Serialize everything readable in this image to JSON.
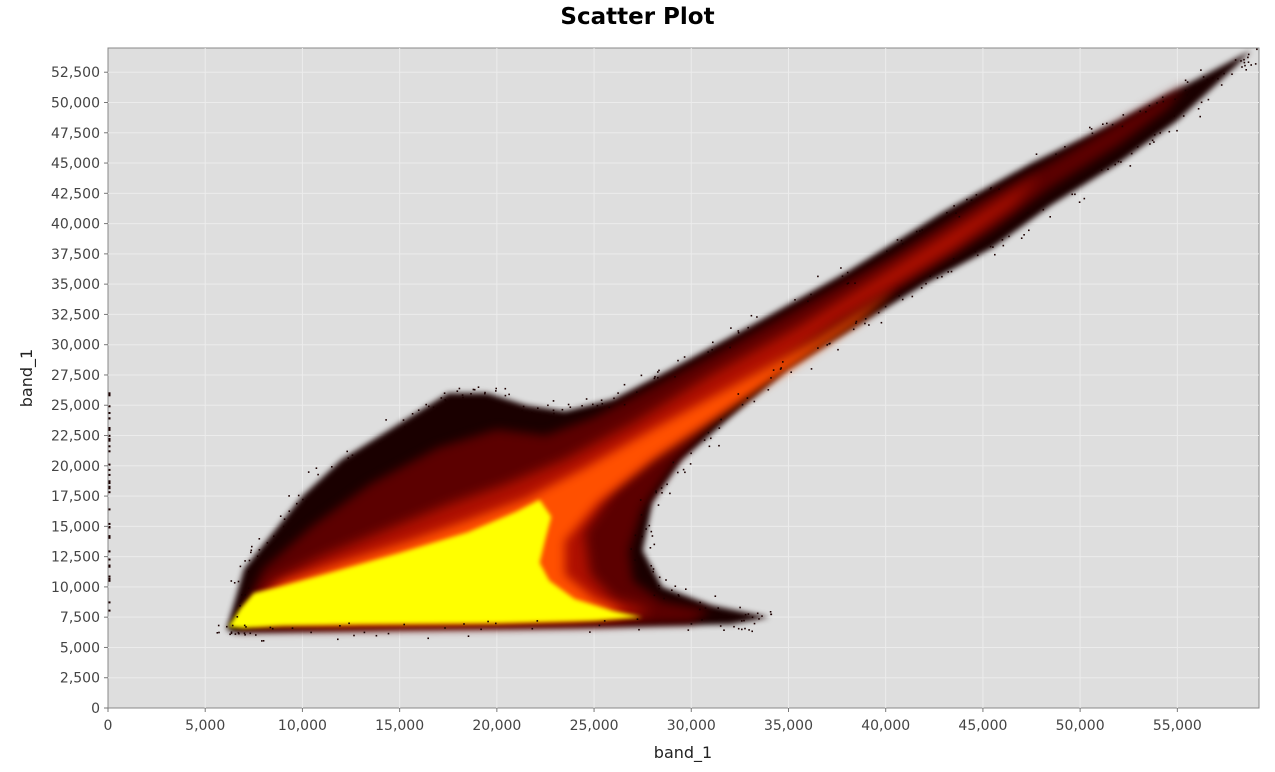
{
  "chart_data": {
    "type": "heatmap",
    "subtype": "density-scatter",
    "title": "Scatter Plot",
    "xlabel": "band_1",
    "ylabel": "band_1",
    "xlim": [
      0,
      59200
    ],
    "ylim": [
      0,
      54500
    ],
    "x_ticks": [
      0,
      5000,
      10000,
      15000,
      20000,
      25000,
      30000,
      35000,
      40000,
      45000,
      50000,
      55000
    ],
    "x_tick_labels": [
      "0",
      "5,000",
      "10,000",
      "15,000",
      "20,000",
      "25,000",
      "30,000",
      "35,000",
      "40,000",
      "45,000",
      "50,000",
      "55,000"
    ],
    "y_ticks": [
      0,
      2500,
      5000,
      7500,
      10000,
      12500,
      15000,
      17500,
      20000,
      22500,
      25000,
      27500,
      30000,
      32500,
      35000,
      37500,
      40000,
      42500,
      45000,
      47500,
      50000,
      52500
    ],
    "y_tick_labels": [
      "0",
      "2,500",
      "5,000",
      "7,500",
      "10,000",
      "12,500",
      "15,000",
      "17,500",
      "20,000",
      "22,500",
      "25,000",
      "27,500",
      "30,000",
      "32,500",
      "35,000",
      "37,500",
      "40,000",
      "42,500",
      "45,000",
      "47,500",
      "50,000",
      "52,500"
    ],
    "grid": true,
    "colors": {
      "plot_background": "#dedede",
      "gridline": "#ececec",
      "low_density": "#1a0000",
      "mid_low_density": "#5c0000",
      "mid_density": "#b01000",
      "high_density": "#ff5000",
      "peak_density": "#ffff00"
    },
    "density_regions": [
      {
        "level": "sparse",
        "polygon": [
          [
            6100,
            6500
          ],
          [
            7000,
            11500
          ],
          [
            8500,
            14500
          ],
          [
            10000,
            17500
          ],
          [
            12000,
            20500
          ],
          [
            15000,
            23500
          ],
          [
            17500,
            26000
          ],
          [
            19500,
            26000
          ],
          [
            21500,
            25000
          ],
          [
            23500,
            24500
          ],
          [
            26000,
            25500
          ],
          [
            29000,
            28000
          ],
          [
            33000,
            31500
          ],
          [
            38000,
            36000
          ],
          [
            43000,
            41000
          ],
          [
            47500,
            45000
          ],
          [
            52000,
            48500
          ],
          [
            55500,
            51500
          ],
          [
            58800,
            54300
          ],
          [
            58000,
            53000
          ],
          [
            55000,
            48500
          ],
          [
            52000,
            45000
          ],
          [
            48500,
            41500
          ],
          [
            45500,
            38000
          ],
          [
            42000,
            35000
          ],
          [
            38500,
            31500
          ],
          [
            35000,
            28000
          ],
          [
            32000,
            24000
          ],
          [
            29500,
            20500
          ],
          [
            28000,
            17000
          ],
          [
            27500,
            13000
          ],
          [
            28500,
            10000
          ],
          [
            31000,
            8500
          ],
          [
            34000,
            7500
          ],
          [
            32000,
            6900
          ],
          [
            25000,
            6700
          ],
          [
            15000,
            6500
          ],
          [
            9000,
            6300
          ],
          [
            6500,
            6200
          ]
        ]
      },
      {
        "level": "low",
        "polygon": [
          [
            6600,
            7000
          ],
          [
            8000,
            11500
          ],
          [
            10500,
            15000
          ],
          [
            13500,
            18500
          ],
          [
            17000,
            21500
          ],
          [
            20000,
            23000
          ],
          [
            22500,
            22500
          ],
          [
            25000,
            24000
          ],
          [
            28000,
            26500
          ],
          [
            31500,
            29500
          ],
          [
            36000,
            33500
          ],
          [
            40500,
            37500
          ],
          [
            45000,
            42000
          ],
          [
            49000,
            45500
          ],
          [
            52500,
            48800
          ],
          [
            55500,
            51500
          ],
          [
            54500,
            49500
          ],
          [
            52000,
            46500
          ],
          [
            48500,
            43000
          ],
          [
            45500,
            39500
          ],
          [
            42500,
            36500
          ],
          [
            39500,
            33500
          ],
          [
            36500,
            30500
          ],
          [
            33500,
            27000
          ],
          [
            31000,
            23500
          ],
          [
            29000,
            20000
          ],
          [
            27500,
            16500
          ],
          [
            26800,
            13000
          ],
          [
            27000,
            10500
          ],
          [
            28500,
            8800
          ],
          [
            31000,
            8000
          ],
          [
            30000,
            7100
          ],
          [
            24000,
            6800
          ],
          [
            15000,
            6600
          ],
          [
            9000,
            6500
          ],
          [
            6700,
            6500
          ]
        ]
      },
      {
        "level": "mid",
        "polygon": [
          [
            7000,
            7500
          ],
          [
            8500,
            10500
          ],
          [
            11000,
            12500
          ],
          [
            14000,
            14500
          ],
          [
            17500,
            16800
          ],
          [
            20500,
            18500
          ],
          [
            23500,
            20500
          ],
          [
            27000,
            23500
          ],
          [
            31000,
            27500
          ],
          [
            35500,
            31500
          ],
          [
            40000,
            36000
          ],
          [
            44500,
            40500
          ],
          [
            48000,
            44000
          ],
          [
            46500,
            41500
          ],
          [
            43500,
            38000
          ],
          [
            40500,
            35000
          ],
          [
            37500,
            32000
          ],
          [
            34500,
            28500
          ],
          [
            31500,
            25000
          ],
          [
            28500,
            21500
          ],
          [
            26000,
            18000
          ],
          [
            24500,
            14500
          ],
          [
            24800,
            11000
          ],
          [
            26000,
            9000
          ],
          [
            28000,
            8000
          ],
          [
            26000,
            7300
          ],
          [
            20000,
            7000
          ],
          [
            12000,
            6900
          ],
          [
            7500,
            7000
          ]
        ]
      },
      {
        "level": "high",
        "polygon": [
          [
            7200,
            8000
          ],
          [
            9000,
            10300
          ],
          [
            12000,
            12000
          ],
          [
            15500,
            13800
          ],
          [
            18500,
            15500
          ],
          [
            21500,
            17300
          ],
          [
            24500,
            19800
          ],
          [
            28000,
            23000
          ],
          [
            32000,
            26500
          ],
          [
            36500,
            30500
          ],
          [
            40500,
            34500
          ],
          [
            38500,
            31800
          ],
          [
            35000,
            28000
          ],
          [
            31500,
            24200
          ],
          [
            28000,
            20500
          ],
          [
            25200,
            17000
          ],
          [
            23500,
            13800
          ],
          [
            23500,
            11000
          ],
          [
            25000,
            9000
          ],
          [
            26500,
            8000
          ],
          [
            24000,
            7400
          ],
          [
            18000,
            7100
          ],
          [
            11000,
            7000
          ],
          [
            7500,
            7300
          ]
        ]
      },
      {
        "level": "peak",
        "polygon": [
          [
            6200,
            6700
          ],
          [
            6800,
            8200
          ],
          [
            7500,
            9500
          ],
          [
            8800,
            10000
          ],
          [
            11500,
            11200
          ],
          [
            15000,
            12800
          ],
          [
            18500,
            14500
          ],
          [
            21000,
            16200
          ],
          [
            22200,
            17200
          ],
          [
            22800,
            15800
          ],
          [
            22500,
            14000
          ],
          [
            22200,
            12000
          ],
          [
            22700,
            10500
          ],
          [
            24000,
            9000
          ],
          [
            26000,
            8000
          ],
          [
            27500,
            7500
          ],
          [
            25000,
            7200
          ],
          [
            20000,
            7000
          ],
          [
            13000,
            6900
          ],
          [
            9000,
            6800
          ],
          [
            7000,
            6600
          ]
        ]
      }
    ],
    "annotations": []
  }
}
